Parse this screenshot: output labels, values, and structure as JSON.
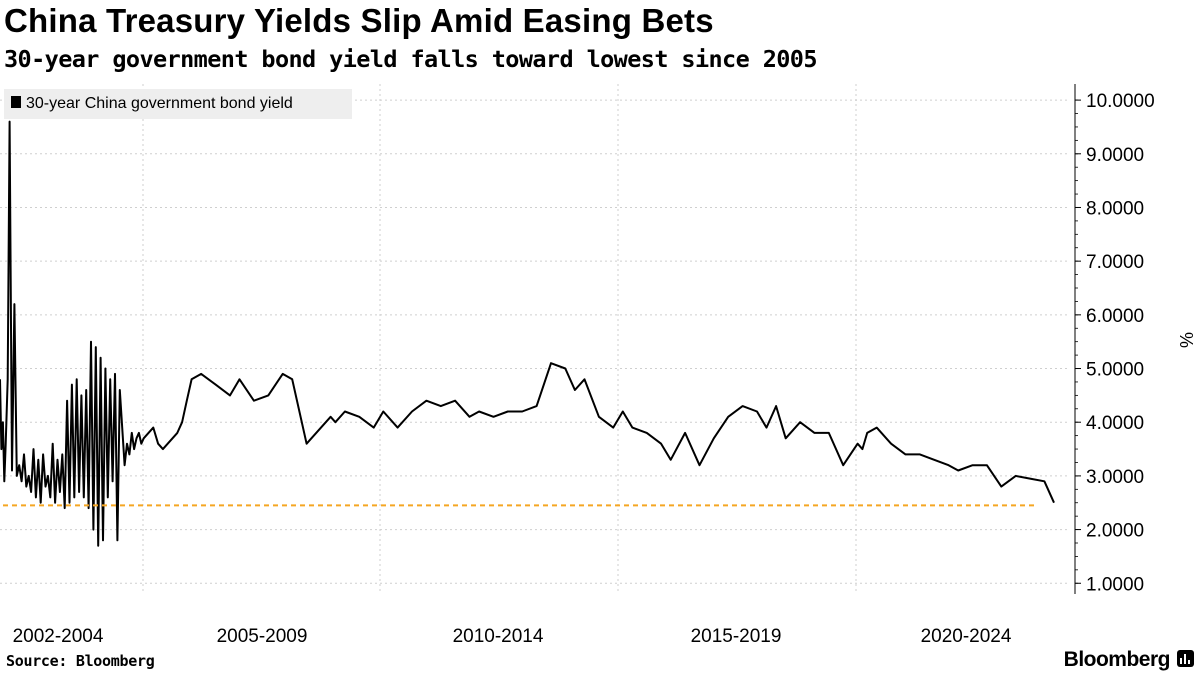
{
  "chart_data": {
    "type": "line",
    "title": "China Treasury Yields Slip Amid Easing Bets",
    "subtitle": "30-year government bond yield falls toward lowest since 2005",
    "ylabel": "%",
    "xlabel": "",
    "ylim": [
      0.8,
      10.3
    ],
    "yticks": [
      "10.0000",
      "9.0000",
      "8.0000",
      "7.0000",
      "6.0000",
      "5.0000",
      "4.0000",
      "3.0000",
      "2.0000",
      "1.0000"
    ],
    "ytick_values": [
      10,
      9,
      8,
      7,
      6,
      5,
      4,
      3,
      2,
      1
    ],
    "x_period_labels": [
      "2002-2004",
      "2005-2009",
      "2010-2014",
      "2015-2019",
      "2020-2024"
    ],
    "xlim": [
      2002.0,
      2024.0
    ],
    "legend": {
      "label": "30-year China government bond yield",
      "position": "top-left"
    },
    "series": [
      {
        "name": "30-year China government bond yield",
        "x": [
          2002.0,
          2002.03,
          2002.06,
          2002.09,
          2002.12,
          2002.16,
          2002.2,
          2002.25,
          2002.3,
          2002.35,
          2002.4,
          2002.45,
          2002.5,
          2002.55,
          2002.6,
          2002.65,
          2002.7,
          2002.75,
          2002.8,
          2002.85,
          2002.9,
          2002.95,
          2003.0,
          2003.05,
          2003.1,
          2003.15,
          2003.2,
          2003.25,
          2003.3,
          2003.35,
          2003.4,
          2003.45,
          2003.5,
          2003.55,
          2003.6,
          2003.65,
          2003.7,
          2003.75,
          2003.8,
          2003.85,
          2003.9,
          2003.95,
          2004.0,
          2004.05,
          2004.1,
          2004.15,
          2004.2,
          2004.25,
          2004.3,
          2004.35,
          2004.4,
          2004.45,
          2004.5,
          2004.55,
          2004.6,
          2004.65,
          2004.7,
          2004.75,
          2004.8,
          2004.85,
          2004.9,
          2004.95,
          2005.0,
          2005.1,
          2005.2,
          2005.3,
          2005.4,
          2005.5,
          2005.6,
          2005.7,
          2005.8,
          2005.9,
          2006.0,
          2006.2,
          2006.5,
          2006.8,
          2007.0,
          2007.3,
          2007.6,
          2007.9,
          2008.1,
          2008.4,
          2008.7,
          2008.9,
          2009.0,
          2009.2,
          2009.5,
          2009.8,
          2010.0,
          2010.3,
          2010.6,
          2010.9,
          2011.2,
          2011.5,
          2011.8,
          2012.0,
          2012.3,
          2012.6,
          2012.9,
          2013.2,
          2013.5,
          2013.8,
          2014.0,
          2014.2,
          2014.5,
          2014.8,
          2015.0,
          2015.2,
          2015.5,
          2015.8,
          2016.0,
          2016.3,
          2016.6,
          2016.9,
          2017.2,
          2017.5,
          2017.8,
          2018.0,
          2018.2,
          2018.4,
          2018.7,
          2019.0,
          2019.3,
          2019.6,
          2019.9,
          2020.0,
          2020.1,
          2020.3,
          2020.6,
          2020.9,
          2021.2,
          2021.5,
          2021.8,
          2022.0,
          2022.3,
          2022.6,
          2022.9,
          2023.2,
          2023.5,
          2023.8,
          2024.0
        ],
        "values": [
          4.8,
          3.5,
          4.0,
          2.9,
          3.6,
          4.8,
          9.6,
          3.1,
          6.2,
          3.0,
          3.2,
          2.9,
          3.4,
          2.8,
          3.0,
          2.7,
          3.5,
          2.6,
          3.3,
          2.5,
          3.4,
          2.8,
          3.0,
          2.6,
          3.6,
          2.5,
          3.3,
          2.7,
          3.4,
          2.4,
          4.4,
          2.5,
          4.7,
          2.6,
          4.8,
          2.7,
          4.5,
          2.6,
          4.6,
          2.4,
          5.5,
          2.0,
          5.4,
          1.7,
          5.2,
          1.8,
          5.0,
          2.6,
          4.8,
          2.9,
          4.9,
          1.8,
          4.6,
          3.9,
          3.2,
          3.6,
          3.4,
          3.8,
          3.5,
          3.7,
          3.8,
          3.6,
          3.7,
          3.8,
          3.9,
          3.6,
          3.5,
          3.6,
          3.7,
          3.8,
          4.0,
          4.4,
          4.8,
          4.9,
          4.7,
          4.5,
          4.8,
          4.4,
          4.5,
          4.9,
          4.8,
          3.6,
          3.9,
          4.1,
          4.0,
          4.2,
          4.1,
          3.9,
          4.2,
          3.9,
          4.2,
          4.4,
          4.3,
          4.4,
          4.1,
          4.2,
          4.1,
          4.2,
          4.2,
          4.3,
          5.1,
          5.0,
          4.6,
          4.8,
          4.1,
          3.9,
          4.2,
          3.9,
          3.8,
          3.6,
          3.3,
          3.8,
          3.2,
          3.7,
          4.1,
          4.3,
          4.2,
          3.9,
          4.3,
          3.7,
          4.0,
          3.8,
          3.8,
          3.2,
          3.6,
          3.5,
          3.8,
          3.9,
          3.6,
          3.4,
          3.4,
          3.3,
          3.2,
          3.1,
          3.2,
          3.2,
          2.8,
          3.0,
          2.95,
          2.9,
          2.5
        ]
      }
    ],
    "annotation": {
      "type": "dashed-arrow",
      "color": "#f5a623",
      "y": 2.45,
      "from_x": 2024.0,
      "to_x": 2005.0,
      "note": "lowest since 2005"
    },
    "source": "Source: Bloomberg",
    "brand": "Bloomberg"
  }
}
